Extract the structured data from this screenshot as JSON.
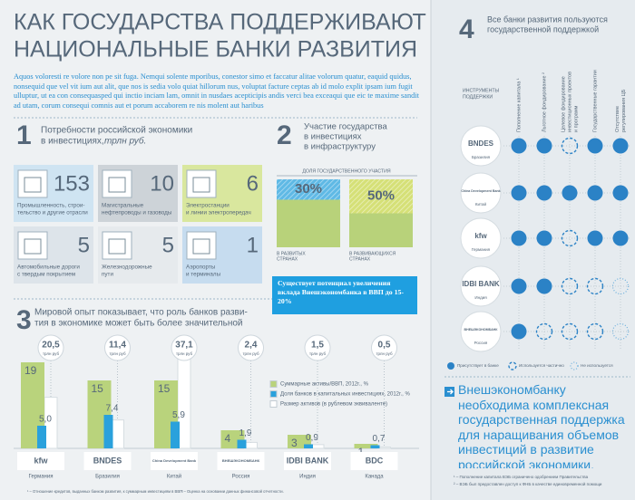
{
  "header": {
    "title_lines": [
      "КАК ГОСУДАРСТВА ПОДДЕРЖИВАЮТ",
      "НАЦИОНАЛЬНЫЕ БАНКИ РАЗВИТИЯ"
    ],
    "intro": "Aquos voloresti re volore non pe sit fuga. Nemqui solente mporibus, conestor simo et faccatur alitae volorum quatur, eaquid quidus, nonsequid que vel vit ium aut alit, que nos is sedia volo quiat hillorum nus, voluptat facture ceptas ab id molo explit ipsam ium fugit ulluptur, ut ea con consequasped qui inctio inciam lam, omnit in nusdaes acepticipis andis verci bea exceaqui que eic te maxime sandit ad utam, corum consequi comnis aut et porum accaborem re nis molent aut haribus"
  },
  "section1": {
    "number": 1,
    "title_lines": [
      "Потребности российской экономики",
      "в инвестициях,"
    ],
    "unit": "трлн руб.",
    "tiles": [
      {
        "value": 153,
        "label_lines": [
          "Промышленность, строи-",
          "тельство и другие отрасли"
        ],
        "color": "#cfe4f2"
      },
      {
        "value": 10,
        "label_lines": [
          "Магистральные",
          "нефтепроводы и газоводы"
        ],
        "color": "#cdd3d8"
      },
      {
        "value": 6,
        "label_lines": [
          "Электростанции",
          "и линии электропередач"
        ],
        "color": "#d9e79e"
      },
      {
        "value": 5,
        "label_lines": [
          "Автомобильные дороги",
          "с твердым покрытием"
        ],
        "color": "#dde4ea"
      },
      {
        "value": 5,
        "label_lines": [
          "Железнодорожные",
          "пути"
        ],
        "color": "#e6eaed"
      },
      {
        "value": 1,
        "label_lines": [
          "Аэропорты",
          "и терминалы"
        ],
        "color": "#c6dcef"
      }
    ]
  },
  "section2": {
    "number": 2,
    "title_lines": [
      "Участие государства",
      "в инвестициях",
      "в инфраструктуру"
    ],
    "caption": "ДОЛЯ ГОСУДАРСТВЕННОГО УЧАСТИЯ",
    "bars": [
      {
        "share": {
          "value": 30,
          "label": "30%"
        },
        "label_lines": [
          "В РАЗВИТЫХ",
          "СТРАНАХ"
        ],
        "color": "#2aa1dc",
        "base_color": "#b8d27a"
      },
      {
        "share": {
          "value": 50,
          "label": "50%"
        },
        "label_lines": [
          "В РАЗВИВАЮЩИХСЯ",
          "СТРАНАХ"
        ],
        "color": "#c7d64a",
        "base_color": "#b8d27a"
      }
    ],
    "callout": "Существует потенциал увеличения вклада Внешэкономбанка в ВВП до 15-20%"
  },
  "section3": {
    "number": 3,
    "title_lines": [
      "Мировой опыт показывает, что роль банков разви-",
      "тия в экономике может быть более значительной"
    ],
    "chart_data": {
      "type": "bar",
      "categories": [
        "Германия",
        "Бразилия",
        "Китай",
        "Россия",
        "Индия",
        "Канада"
      ],
      "logos": [
        "kfw",
        "BNDES",
        "China Development Bank",
        "ВНЕШЭКОНОМБАНК",
        "IDBI BANK",
        "BDC"
      ],
      "series": [
        {
          "name": "Суммарные активы/ВВП, 2012г., %",
          "color": "#b9d37c",
          "values": [
            19,
            15,
            15,
            4,
            3,
            1
          ]
        },
        {
          "name": "Доля банков в капитальных инвестициях, 2012г., %",
          "color": "#2aa1dc",
          "values": [
            5.0,
            7.4,
            5.9,
            1.9,
            0.9,
            0.7
          ],
          "value_labels": [
            "5,0",
            "7,4",
            "5,9",
            "1,9",
            "0,9",
            "0,7"
          ]
        },
        {
          "name": "Размер активов (в рублевом эквиваленте)",
          "color": "#ffffff",
          "axis": "y2",
          "values": [
            20.5,
            11.4,
            37.1,
            2.4,
            1.5,
            0.5
          ],
          "value_labels": [
            "20,5",
            "11,4",
            "37,1",
            "2,4",
            "1,5",
            "0,5"
          ],
          "unit": "трлн руб"
        }
      ],
      "ylim": [
        0,
        20
      ],
      "y2lim": [
        0,
        40
      ]
    },
    "footnotes": [
      "¹ – Отношение кредитов, выданных банком развития, к суммарным инвестициям в ВВП.",
      "² – Оценка на основании данных финансовой отчетности."
    ]
  },
  "section4": {
    "number": 4,
    "title_lines": [
      "Все банки развития пользуются",
      "государственной поддержкой"
    ],
    "instruments_lines": [
      "ИНСТРУМЕНТЫ",
      "ПОДДЕРЖКИ"
    ],
    "columns": [
      [
        "Пополнение капитала ¹"
      ],
      [
        "Льготное фондирование ²"
      ],
      [
        "Целевое фондирование",
        "инвестиционных проектов",
        "и программ"
      ],
      [
        "Государственные гарантии"
      ],
      [
        "Отсутствие",
        "регулирования ЦБ"
      ]
    ],
    "banks": [
      {
        "logo": "BNDES",
        "country": "Бразилия",
        "support": [
          "full",
          "full",
          "partial",
          "full",
          "full"
        ]
      },
      {
        "logo": "China Development Bank",
        "country": "Китай",
        "support": [
          "full",
          "full",
          "full",
          "full",
          "full"
        ]
      },
      {
        "logo": "kfw",
        "country": "Германия",
        "support": [
          "full",
          "full",
          "partial",
          "full",
          "full"
        ]
      },
      {
        "logo": "IDBI BANK",
        "country": "Индия",
        "support": [
          "full",
          "full",
          "partial",
          "partial",
          "none"
        ]
      },
      {
        "logo": "ВНЕШЭКОНОМБАНК",
        "country": "Россия",
        "support": [
          "full",
          "partial",
          "partial",
          "partial",
          "none"
        ]
      }
    ],
    "legend": [
      {
        "state": "full",
        "label": "Присутствует в банке"
      },
      {
        "state": "partial",
        "label": "Используется частично"
      },
      {
        "state": "none",
        "label": "Не используется"
      }
    ]
  },
  "conclusion": "Внешэкономбанку необходима комплексная государственная поддержка для наращивания объемов инвестиций в развитие российской экономики.",
  "footnotes": [
    "¹ – Пополнение капитала ВЭБ ограничено одобрением Правительства",
    "² – ВЭБ был предоставлен доступ к ФНБ в качестве единовременной помощи"
  ]
}
